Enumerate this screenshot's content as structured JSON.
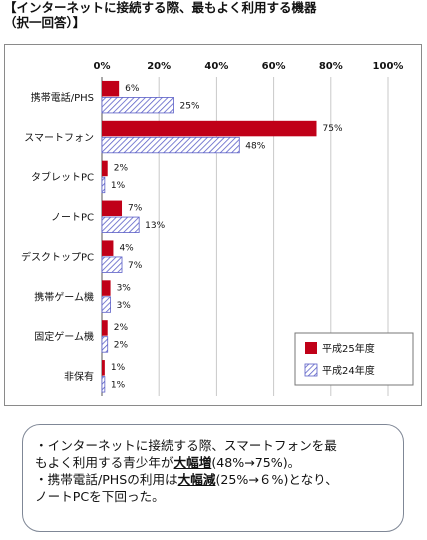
{
  "page": {
    "title": "【インターネットに接続する際、最もよく利用する機器\n（択一回答）】"
  },
  "chart_data": {
    "type": "bar",
    "orientation": "horizontal",
    "title": "",
    "xlabel": "",
    "ylabel": "",
    "xlim": [
      0,
      100
    ],
    "x_ticks": [
      "0%",
      "20%",
      "40%",
      "60%",
      "80%",
      "100%"
    ],
    "grid": true,
    "legend_position": "bottom-right",
    "categories": [
      "携帯電話/PHS",
      "スマートフォン",
      "タブレットPC",
      "ノートPC",
      "デスクトップPC",
      "携帯ゲーム機",
      "固定ゲーム機",
      "非保有"
    ],
    "series": [
      {
        "name": "平成25年度",
        "style": "solid",
        "color": "#c00018",
        "values": [
          6,
          75,
          2,
          7,
          4,
          3,
          2,
          1
        ],
        "labels": [
          "6%",
          "75%",
          "2%",
          "7%",
          "4%",
          "3%",
          "2%",
          "1%"
        ]
      },
      {
        "name": "平成24年度",
        "style": "hatched",
        "color": "#5b5fc7",
        "values": [
          25,
          48,
          1,
          13,
          7,
          3,
          2,
          1
        ],
        "labels": [
          "25%",
          "48%",
          "1%",
          "13%",
          "7%",
          "3%",
          "2%",
          "1%"
        ]
      }
    ]
  },
  "note": {
    "line1_a": "・インターネットに接続する際、スマートフォンを最",
    "line2_a": "もよく利用する青少年が",
    "line2_bold": "大幅増",
    "line2_b": "(48%→75%)。",
    "line3_a": "・携帯電話/PHSの利用は",
    "line3_bold": "大幅減",
    "line3_b": "(25%→６%)となり、",
    "line4": "ノートPCを下回った。"
  }
}
